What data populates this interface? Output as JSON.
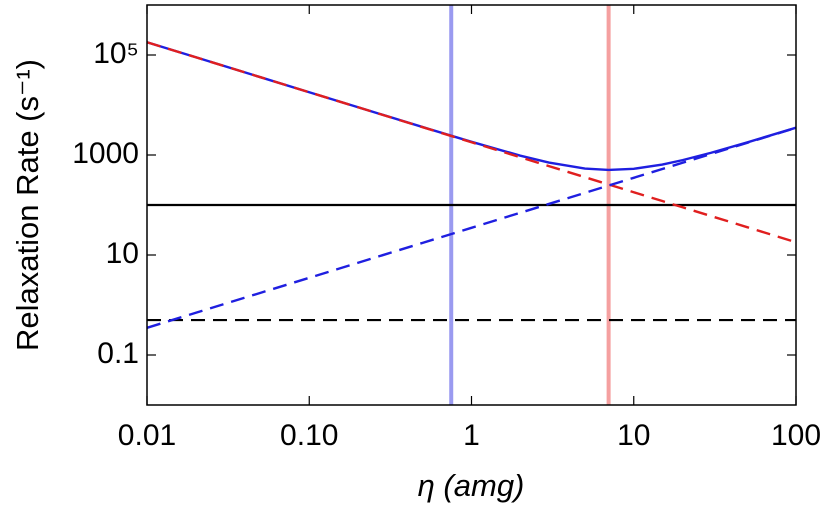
{
  "chart_data": {
    "type": "line",
    "xlabel": "η (amg)",
    "ylabel": "Relaxation Rate (s⁻¹)",
    "xscale": "log",
    "yscale": "log",
    "xlim": [
      0.01,
      100
    ],
    "ylim": [
      0.01,
      1000000
    ],
    "xticks": [
      0.01,
      {
        "value": 0.1,
        "label": "0.10"
      },
      1,
      10,
      100
    ],
    "yticks": [
      0.1,
      10,
      1000,
      {
        "value": 100000,
        "label": "10⁵"
      }
    ],
    "x": [
      0.01,
      0.02,
      0.05,
      0.1,
      0.2,
      0.5,
      1,
      2,
      3,
      5,
      7,
      10,
      15,
      20,
      30,
      50,
      100
    ],
    "series": [
      {
        "color": "#1f1fe0",
        "style": "solid",
        "values": [
          180000,
          90001,
          36002,
          18004,
          9007,
          3618,
          1835,
          970,
          705,
          535,
          502,
          530,
          645,
          790,
          1110,
          1786,
          3518
        ]
      },
      {
        "color": "#e01f1f",
        "style": "dashed",
        "values": [
          180000,
          90000,
          36000,
          18000,
          9000,
          3600,
          1800,
          900,
          600,
          360,
          257,
          180,
          120,
          90,
          60,
          36,
          18
        ]
      },
      {
        "color": "#1f1fe0",
        "style": "dashed",
        "values": [
          0.35,
          0.7,
          1.75,
          3.5,
          7,
          17.5,
          35,
          70,
          105,
          175,
          245,
          350,
          525,
          700,
          1050,
          1750,
          3500
        ]
      }
    ],
    "hlines": [
      {
        "y": 100,
        "color": "#000000",
        "style": "solid"
      },
      {
        "y": 0.5,
        "color": "#000000",
        "style": "dashed"
      }
    ],
    "vlines": [
      {
        "x": 0.75,
        "color": "#9a9af0"
      },
      {
        "x": 7,
        "color": "#f5a0a0"
      }
    ]
  }
}
